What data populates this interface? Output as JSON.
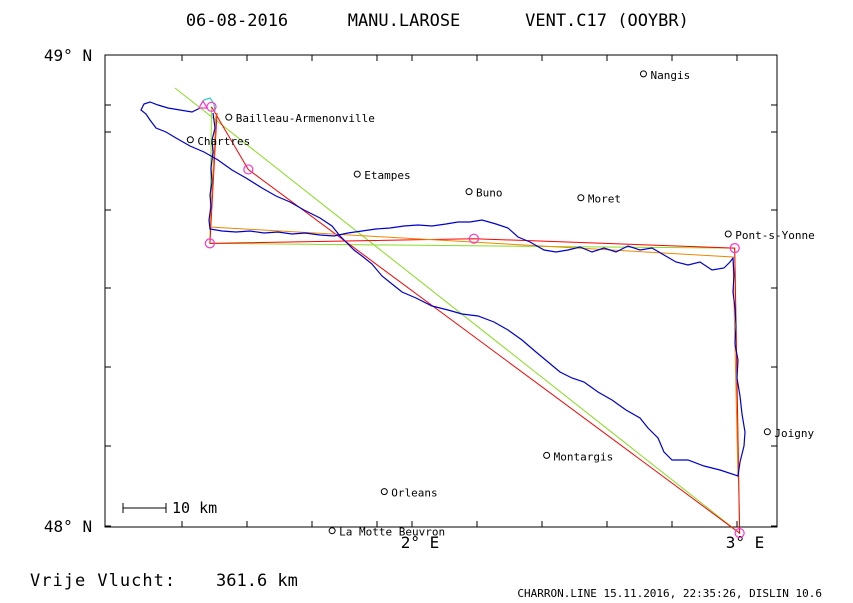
{
  "header": {
    "date": "06-08-2016",
    "pilot": "MANU.LAROSE",
    "glider": "VENT.C17 (OOYBR)"
  },
  "axes": {
    "lat_labels": [
      "49° N",
      "48° N"
    ],
    "lon_labels": [
      "2° E",
      "3° E"
    ],
    "lat_range": [
      48.0,
      49.0
    ],
    "lon_range": [
      1.1,
      3.12
    ]
  },
  "scale_bar": {
    "label": "10 km",
    "km": 10
  },
  "places": [
    {
      "name": "Nangis",
      "lon": 2.71,
      "lat": 48.96
    },
    {
      "name": "Bailleau-Armenonville",
      "lon": 1.438,
      "lat": 48.868
    },
    {
      "name": "Chartres",
      "lon": 1.32,
      "lat": 48.82
    },
    {
      "name": "Etampes",
      "lon": 1.832,
      "lat": 48.747
    },
    {
      "name": "Buno",
      "lon": 2.175,
      "lat": 48.71
    },
    {
      "name": "Moret",
      "lon": 2.518,
      "lat": 48.697
    },
    {
      "name": "Pont-s-Yonne",
      "lon": 2.97,
      "lat": 48.62
    },
    {
      "name": "Joigny",
      "lon": 3.09,
      "lat": 48.2
    },
    {
      "name": "Montargis",
      "lon": 2.413,
      "lat": 48.15
    },
    {
      "name": "Orleans",
      "lon": 1.915,
      "lat": 48.073
    },
    {
      "name": "La Motte Beuvron",
      "lon": 1.755,
      "lat": 47.99
    }
  ],
  "turnpoints": [
    {
      "lon": 1.385,
      "lat": 48.89
    },
    {
      "lon": 1.498,
      "lat": 48.757
    },
    {
      "lon": 1.38,
      "lat": 48.6
    },
    {
      "lon": 2.19,
      "lat": 48.61
    },
    {
      "lon": 2.99,
      "lat": 48.59
    },
    {
      "lon": 3.005,
      "lat": 47.985
    }
  ],
  "colors": {
    "track": "#0000cc",
    "task_red": "#ff0000",
    "task_green": "#88dd22",
    "task_orange": "#ee8800",
    "marker": "#ff33cc",
    "start": "#33cccc"
  },
  "footer": {
    "distance_label": "Vrije Vlucht:",
    "distance_value": "361.6 km",
    "credits": "CHARRON.LINE 15.11.2016, 22:35:26, DISLIN 10.6"
  }
}
